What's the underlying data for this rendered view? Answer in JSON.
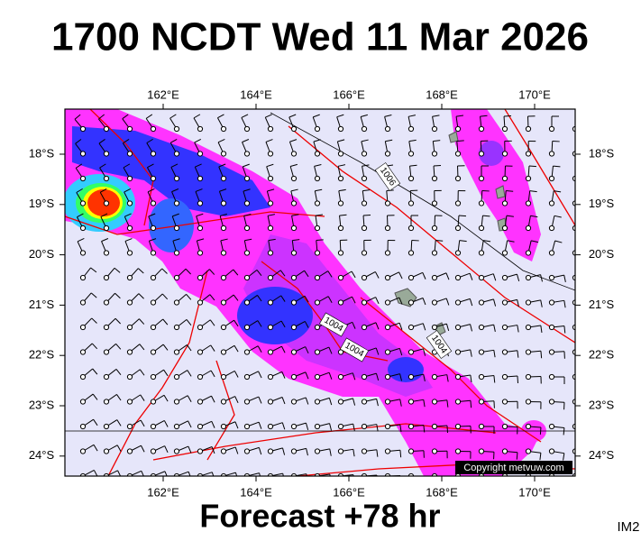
{
  "header": {
    "title": "1700 NCDT Wed 11 Mar 2026"
  },
  "axes": {
    "longitude": [
      "162°E",
      "164°E",
      "166°E",
      "168°E",
      "170°E"
    ],
    "latitude": [
      "18°S",
      "19°S",
      "20°S",
      "21°S",
      "22°S",
      "23°S",
      "24°S"
    ]
  },
  "map": {
    "isobar_labels": [
      "1006",
      "1004",
      "1004",
      "1004"
    ],
    "copyright": "Copyright metvuw.com"
  },
  "footer": {
    "forecast": "Forecast +78 hr",
    "id": "IM2"
  }
}
